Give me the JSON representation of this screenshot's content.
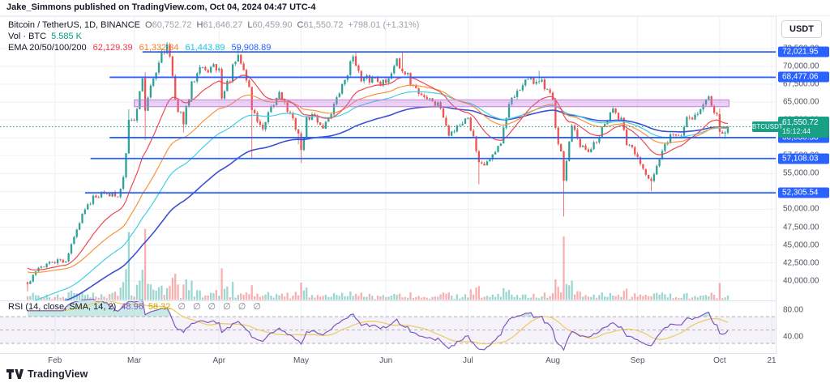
{
  "header": {
    "published_line": "Jake_Simmons published on TradingView.com, Oct 04, 2024 04:47 UTC-4"
  },
  "legend": {
    "title": "Bitcoin / TetherUS, 1D, BINANCE",
    "ohlc": [
      {
        "k": "O",
        "v": "60,752.72"
      },
      {
        "k": "H",
        "v": "61,646.27"
      },
      {
        "k": "L",
        "v": "60,459.90"
      },
      {
        "k": "C",
        "v": "61,550.72"
      }
    ],
    "change": "+798.01 (+1.31%)",
    "vol_label": "Vol · BTC",
    "vol_value": "5.585 K",
    "ema_label": "EMA 20/50/100/200",
    "ema_values": [
      {
        "text": "62,129.39",
        "color": "#f23645"
      },
      {
        "text": "61,332.34",
        "color": "#f77c2b"
      },
      {
        "text": "61,443.89",
        "color": "#1bc5dd"
      },
      {
        "text": "59,908.89",
        "color": "#2962ff"
      }
    ]
  },
  "rsi_legend": {
    "label": "RSI (14, close, SMA, 14, 2)",
    "value1": "48.96",
    "value2": "58.32",
    "empties": [
      "∅",
      "∅",
      "∅",
      "∅",
      "∅",
      "∅"
    ]
  },
  "price_axis": {
    "currency_button": "USDT",
    "ticks": [
      {
        "label": "72,500.00",
        "value": 72500
      },
      {
        "label": "70,000.00",
        "value": 70000
      },
      {
        "label": "67,500.00",
        "value": 67500
      },
      {
        "label": "65,000.00",
        "value": 65000
      },
      {
        "label": "62,500.00",
        "value": 62500
      },
      {
        "label": "57,500.00",
        "value": 57500
      },
      {
        "label": "55,000.00",
        "value": 55000
      },
      {
        "label": "50,000.00",
        "value": 50000
      },
      {
        "label": "47,500.00",
        "value": 47500
      },
      {
        "label": "45,000.00",
        "value": 45000
      },
      {
        "label": "42,500.00",
        "value": 42500
      },
      {
        "label": "40,000.00",
        "value": 40000
      }
    ],
    "rsi_ticks": [
      {
        "label": "80.00",
        "value": 80
      },
      {
        "label": "40.00",
        "value": 40
      }
    ],
    "last_price": {
      "symbol": "BTCUSDT",
      "price": "61,550.72",
      "countdown": "15:12:44"
    }
  },
  "time_axis": {
    "labels": [
      {
        "label": "Feb",
        "day": 10
      },
      {
        "label": "Mar",
        "day": 39
      },
      {
        "label": "Apr",
        "day": 70
      },
      {
        "label": "May",
        "day": 100
      },
      {
        "label": "Jun",
        "day": 131
      },
      {
        "label": "Jul",
        "day": 161
      },
      {
        "label": "Aug",
        "day": 192
      },
      {
        "label": "Sep",
        "day": 223
      },
      {
        "label": "Oct",
        "day": 253
      },
      {
        "label": "21",
        "day": 272
      }
    ]
  },
  "footer": {
    "brand": "TradingView"
  },
  "colors": {
    "up": "#2fa196",
    "down": "#ef5350",
    "vol_up": "rgba(38,166,154,0.45)",
    "vol_down": "rgba(239,83,80,0.45)",
    "ema20": "#f0484f",
    "ema50": "#f9933c",
    "ema100": "#45cfe0",
    "ema200": "#3c50d6",
    "ray": "#2962ff",
    "zone_fill": "rgba(187,107,217,0.30)",
    "zone_border": "#c77dd8",
    "last_line": "#17a085",
    "grid": "#eef1f7",
    "separator": "#e0e3eb",
    "rsi_line": "#7e57c2",
    "rsi_sma": "#ecce67",
    "rsi_band_fill": "rgba(126,87,194,0.08)",
    "rsi_dash": "#a5a8b2",
    "rsi_ob_fill": "rgba(38,166,154,0.25)"
  },
  "chart_data": {
    "type": "candlestick",
    "symbol": "Bitcoin / TetherUS",
    "interval": "1D",
    "exchange": "BINANCE",
    "today": {
      "open": 60752.72,
      "high": 61646.27,
      "low": 60459.9,
      "close": 61550.72,
      "change": "+798.01 (+1.31%)"
    },
    "x_axis": {
      "start_date": "2024-01-22",
      "end_date": "2024-10-04",
      "num_days": 257
    },
    "y_axis": {
      "ylim": [
        37245,
        77026
      ],
      "tick_step": 2500,
      "grid_ticks": [
        72500,
        70000,
        67500,
        65000,
        62500,
        60000,
        57500,
        55000,
        52500,
        50000,
        47500,
        45000,
        42500,
        40000
      ]
    },
    "anchors": [
      [
        0,
        39550,
        null,
        38520
      ],
      [
        1,
        39900
      ],
      [
        4,
        41800
      ],
      [
        9,
        42580
      ],
      [
        14,
        42700
      ],
      [
        18,
        47150
      ],
      [
        21,
        49950
      ],
      [
        24,
        51900
      ],
      [
        29,
        52250
      ],
      [
        33,
        51700
      ],
      [
        35,
        54500
      ],
      [
        37,
        62500,
        64000
      ],
      [
        39,
        62400
      ],
      [
        42,
        68300
      ],
      [
        43,
        63800,
        69200,
        59700
      ],
      [
        46,
        68300
      ],
      [
        49,
        72100
      ],
      [
        51,
        73100,
        73300
      ],
      [
        52,
        71400
      ],
      [
        54,
        65300
      ],
      [
        57,
        61900,
        null,
        60760
      ],
      [
        60,
        67900
      ],
      [
        63,
        69900
      ],
      [
        65,
        69500
      ],
      [
        70,
        69700
      ],
      [
        71,
        65500
      ],
      [
        77,
        71600,
        72750
      ],
      [
        81,
        67100
      ],
      [
        82,
        63900,
        null,
        57150
      ],
      [
        86,
        61200
      ],
      [
        92,
        66400
      ],
      [
        99,
        60600,
        null,
        59100
      ],
      [
        100,
        58300,
        null,
        56500
      ],
      [
        102,
        62900
      ],
      [
        105,
        63100
      ],
      [
        108,
        61300
      ],
      [
        114,
        66200
      ],
      [
        119,
        71400
      ],
      [
        120,
        70100,
        71950
      ],
      [
        122,
        67900
      ],
      [
        127,
        68400
      ],
      [
        131,
        67700
      ],
      [
        135,
        71100
      ],
      [
        137,
        69300,
        71990
      ],
      [
        141,
        67300
      ],
      [
        144,
        66000
      ],
      [
        148,
        65100
      ],
      [
        151,
        64100
      ],
      [
        154,
        60300
      ],
      [
        157,
        61700
      ],
      [
        161,
        62800
      ],
      [
        163,
        60200
      ],
      [
        165,
        56600,
        null,
        53485
      ],
      [
        168,
        56700
      ],
      [
        173,
        59200
      ],
      [
        176,
        64700
      ],
      [
        180,
        66700
      ],
      [
        182,
        68150
      ],
      [
        187,
        67900,
        69400
      ],
      [
        189,
        66800
      ],
      [
        192,
        65350
      ],
      [
        193,
        61400
      ],
      [
        195,
        58100
      ],
      [
        196,
        54000,
        null,
        49000
      ],
      [
        199,
        61700
      ],
      [
        202,
        58700
      ],
      [
        205,
        58000
      ],
      [
        208,
        59400
      ],
      [
        214,
        64100
      ],
      [
        217,
        62800
      ],
      [
        219,
        59000
      ],
      [
        223,
        57300
      ],
      [
        228,
        53950,
        null,
        52550
      ],
      [
        231,
        57000
      ],
      [
        235,
        60500
      ],
      [
        239,
        60300
      ],
      [
        241,
        62900
      ],
      [
        245,
        63350
      ],
      [
        249,
        65800
      ],
      [
        252,
        63300
      ],
      [
        253,
        60840,
        64100,
        60150
      ],
      [
        254,
        60600
      ],
      [
        255,
        60750,
        null,
        59850
      ],
      [
        256,
        61550,
        61646,
        60459
      ]
    ],
    "levels": [
      {
        "price": 72021.95,
        "label": "72,021.95",
        "start_day": 42
      },
      {
        "price": 68477.06,
        "label": "68,477.06",
        "start_day": 30
      },
      {
        "price": 60030.58,
        "label": "60,030.58",
        "start_day": 30
      },
      {
        "price": 57108.03,
        "label": "57,108.03",
        "start_day": 23
      },
      {
        "price": 52305.54,
        "label": "52,305.54",
        "start_day": 21
      }
    ],
    "zone": {
      "top": 65320,
      "bottom": 64360,
      "start_day": 39,
      "end_day": 256.4
    },
    "last_price": 61550.72,
    "emas": {
      "periods": [
        20,
        50,
        100,
        200
      ],
      "eff_periods": [
        20,
        42,
        60,
        95
      ],
      "seeds": [
        42000,
        41300,
        36800,
        35500
      ],
      "current": [
        62129.39,
        61332.34,
        61443.89,
        59908.89
      ]
    },
    "volume": {
      "unit": "BTC",
      "today_display": "5.585 K",
      "era_boost": [
        [
          30,
          75,
          1.8
        ],
        [
          160,
          205,
          1.15
        ]
      ],
      "spikes": [
        [
          37,
          1.8
        ],
        [
          42,
          2.1
        ],
        [
          43,
          2.0
        ],
        [
          100,
          1.5
        ],
        [
          165,
          1.4
        ],
        [
          196,
          2.6
        ],
        [
          199,
          1.5
        ],
        [
          253,
          1.5
        ]
      ]
    },
    "rsi": {
      "period": 14,
      "smoothing": "SMA 14",
      "current": 48.96,
      "sma_current": 58.32,
      "ylim": [
        15.5,
        93.1
      ],
      "band_lines": [
        70,
        50,
        30
      ],
      "band_range": [
        30,
        70
      ]
    }
  }
}
